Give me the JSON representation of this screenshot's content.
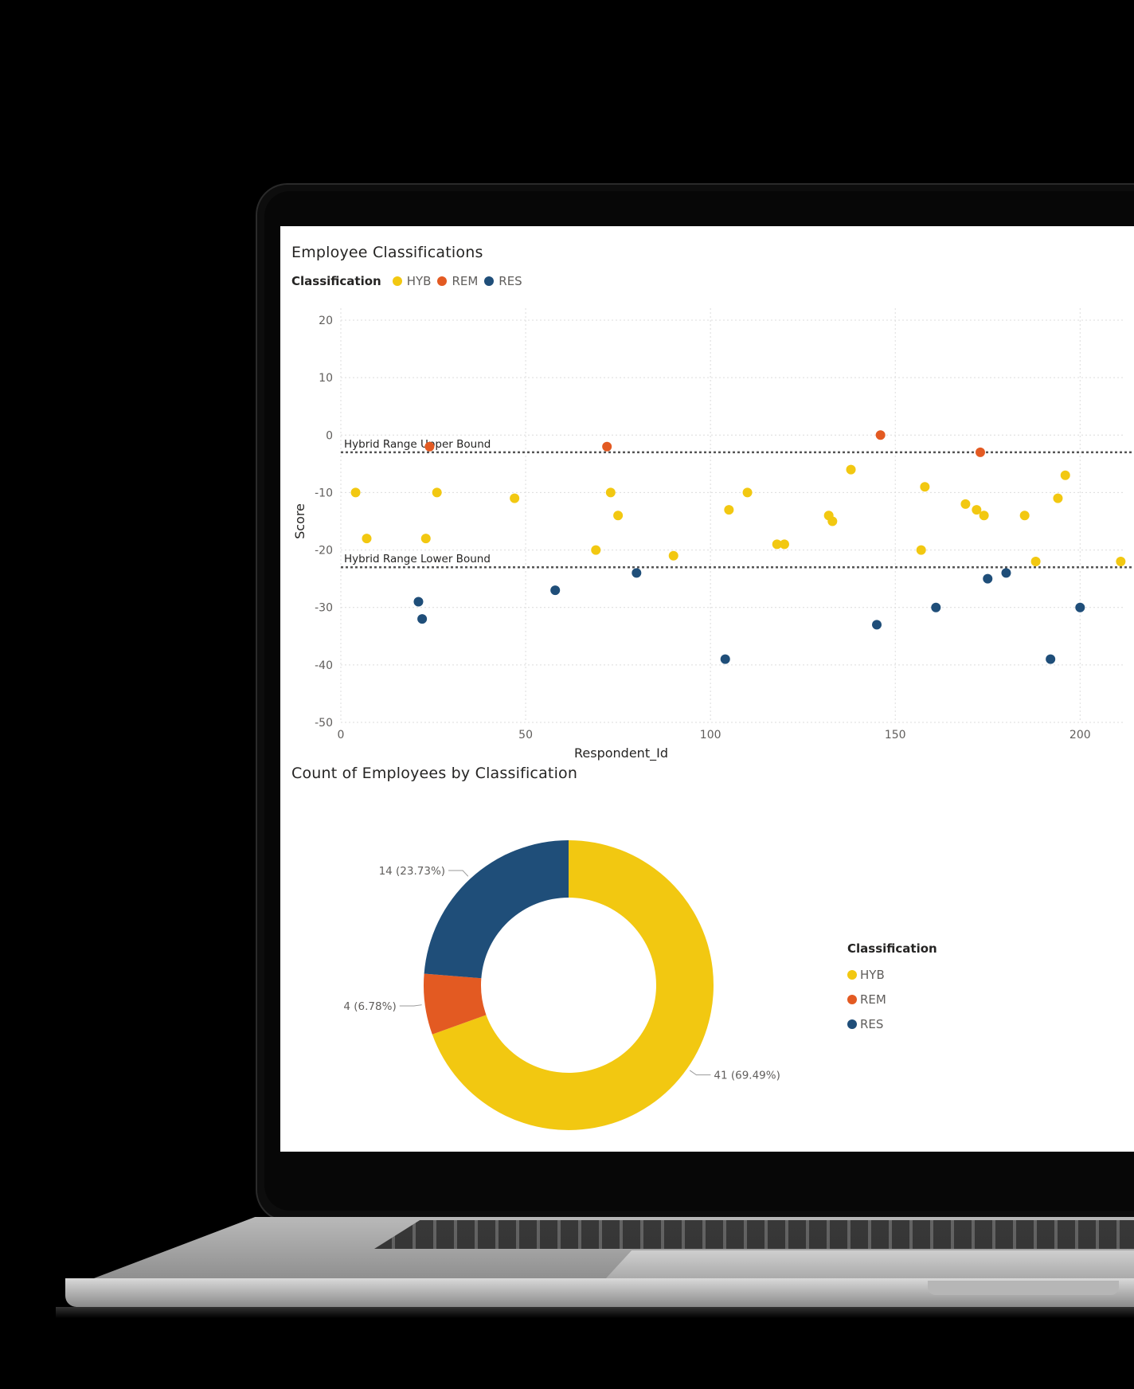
{
  "scatter": {
    "title": "Employee Classifications",
    "legend_title": "Classification",
    "legend": [
      {
        "name": "HYB",
        "color": "#F2C811"
      },
      {
        "name": "REM",
        "color": "#E35A22"
      },
      {
        "name": "RES",
        "color": "#1F4E79"
      }
    ],
    "xlabel": "Respondent_Id",
    "ylabel": "Score",
    "reference_lines": [
      {
        "label": "Hybrid Range Upper Bound",
        "y": -3
      },
      {
        "label": "Hybrid Range Lower Bound",
        "y": -23
      }
    ]
  },
  "donut": {
    "title": "Count of Employees by Classification",
    "legend_title": "Classification",
    "legend": [
      {
        "name": "HYB",
        "color": "#F2C811"
      },
      {
        "name": "REM",
        "color": "#E35A22"
      },
      {
        "name": "RES",
        "color": "#1F4E79"
      }
    ],
    "labels": {
      "HYB": "41 (69.49%)",
      "REM": "4 (6.78%)",
      "RES": "14 (23.73%)"
    }
  },
  "chart_data": [
    {
      "type": "scatter",
      "title": "Employee Classifications",
      "xlabel": "Respondent_Id",
      "ylabel": "Score",
      "xlim": [
        0,
        212
      ],
      "ylim": [
        -50,
        20
      ],
      "xticks": [
        0,
        50,
        100,
        150,
        200
      ],
      "yticks": [
        20,
        10,
        0,
        -10,
        -20,
        -30,
        -40,
        -50
      ],
      "grid": true,
      "legend_position": "top-left",
      "series": [
        {
          "name": "HYB",
          "color": "#F2C811",
          "points": [
            [
              4,
              -10
            ],
            [
              7,
              -18
            ],
            [
              23,
              -18
            ],
            [
              26,
              -10
            ],
            [
              47,
              -11
            ],
            [
              69,
              -20
            ],
            [
              73,
              -10
            ],
            [
              75,
              -14
            ],
            [
              90,
              -21
            ],
            [
              105,
              -13
            ],
            [
              110,
              -10
            ],
            [
              118,
              -19
            ],
            [
              120,
              -19
            ],
            [
              132,
              -14
            ],
            [
              133,
              -15
            ],
            [
              138,
              -6
            ],
            [
              157,
              -20
            ],
            [
              158,
              -9
            ],
            [
              169,
              -12
            ],
            [
              172,
              -13
            ],
            [
              174,
              -14
            ],
            [
              185,
              -14
            ],
            [
              188,
              -22
            ],
            [
              194,
              -11
            ],
            [
              196,
              -7
            ],
            [
              211,
              -22
            ]
          ]
        },
        {
          "name": "REM",
          "color": "#E35A22",
          "points": [
            [
              24,
              -2
            ],
            [
              72,
              -2
            ],
            [
              146,
              0
            ],
            [
              173,
              -3
            ]
          ]
        },
        {
          "name": "RES",
          "color": "#1F4E79",
          "points": [
            [
              21,
              -29
            ],
            [
              22,
              -32
            ],
            [
              58,
              -27
            ],
            [
              80,
              -24
            ],
            [
              104,
              -39
            ],
            [
              145,
              -33
            ],
            [
              161,
              -30
            ],
            [
              175,
              -25
            ],
            [
              180,
              -24
            ],
            [
              192,
              -39
            ],
            [
              200,
              -30
            ]
          ]
        }
      ]
    },
    {
      "type": "pie",
      "title": "Count of Employees by Classification",
      "donut": true,
      "legend_position": "right",
      "categories": [
        "HYB",
        "REM",
        "RES"
      ],
      "values": [
        41,
        4,
        14
      ],
      "colors": [
        "#F2C811",
        "#E35A22",
        "#1F4E79"
      ]
    }
  ]
}
